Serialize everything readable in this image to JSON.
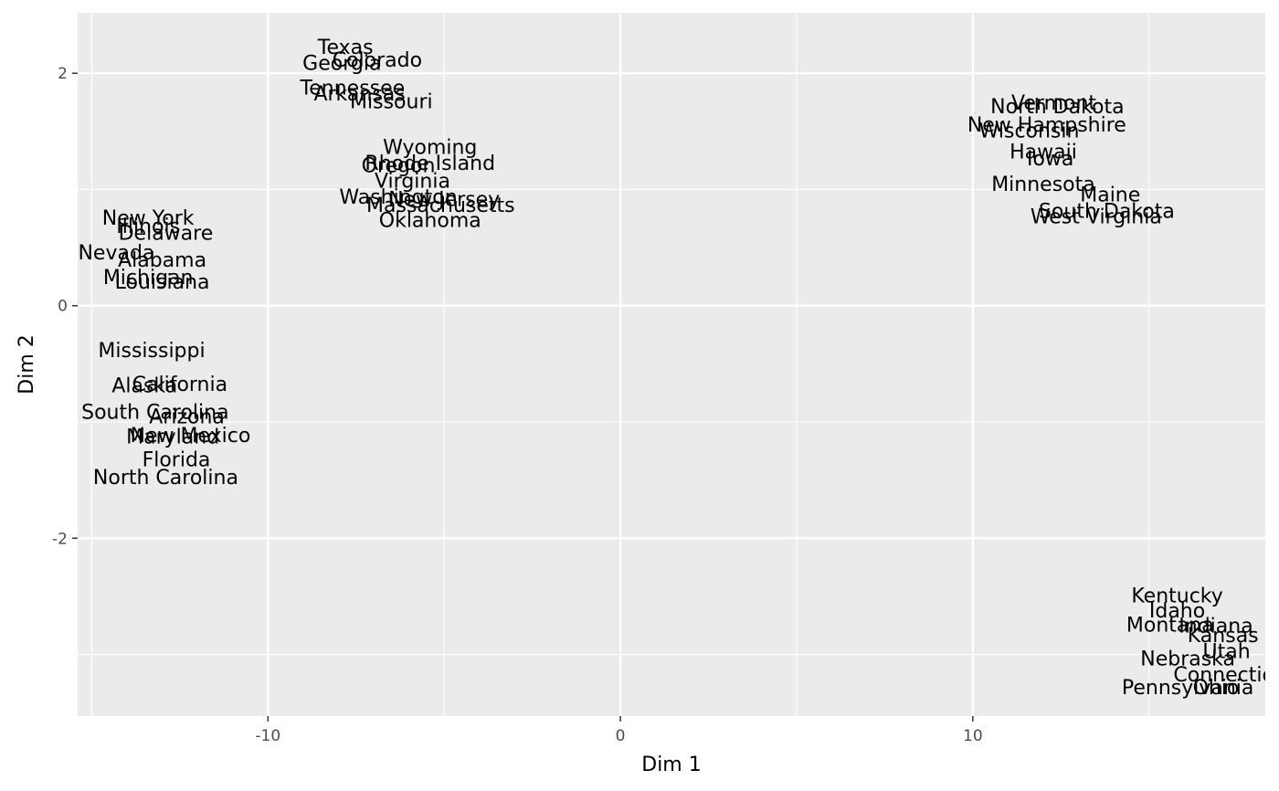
{
  "chart_data": {
    "type": "scatter",
    "title": "",
    "xlabel": "Dim 1",
    "ylabel": "Dim 2",
    "xlim": [
      -15.4,
      18.3
    ],
    "ylim": [
      -3.53,
      2.52
    ],
    "xticks": [
      -10,
      0,
      10
    ],
    "xtick_labels": [
      "-10",
      "0",
      "10"
    ],
    "yticks": [
      -2,
      0,
      2
    ],
    "ytick_labels": [
      "-2",
      "0",
      "2"
    ],
    "grid": true,
    "legend": "none",
    "colors": {
      "panel": "#ebebeb",
      "grid": "#ffffff",
      "text": "#000000",
      "tick_text": "#4d4d4d"
    },
    "points": [
      {
        "label": "Texas",
        "x": -7.8,
        "y": 2.23
      },
      {
        "label": "Colorado",
        "x": -6.9,
        "y": 2.12
      },
      {
        "label": "Georgia",
        "x": -7.9,
        "y": 2.09
      },
      {
        "label": "Tennessee",
        "x": -7.6,
        "y": 1.88
      },
      {
        "label": "Arkansas",
        "x": -7.4,
        "y": 1.83
      },
      {
        "label": "Missouri",
        "x": -6.5,
        "y": 1.76
      },
      {
        "label": "Wyoming",
        "x": -5.4,
        "y": 1.37
      },
      {
        "label": "Rhode Island",
        "x": -5.4,
        "y": 1.23
      },
      {
        "label": "Oregon",
        "x": -6.3,
        "y": 1.21
      },
      {
        "label": "Virginia",
        "x": -5.9,
        "y": 1.08
      },
      {
        "label": "Washington",
        "x": -6.3,
        "y": 0.94
      },
      {
        "label": "New Jersey",
        "x": -5.0,
        "y": 0.92
      },
      {
        "label": "Massachusetts",
        "x": -5.1,
        "y": 0.87
      },
      {
        "label": "Oklahoma",
        "x": -5.4,
        "y": 0.74
      },
      {
        "label": "New York",
        "x": -13.4,
        "y": 0.76
      },
      {
        "label": "Illinois",
        "x": -13.4,
        "y": 0.69
      },
      {
        "label": "Delaware",
        "x": -12.9,
        "y": 0.63
      },
      {
        "label": "Nevada",
        "x": -14.3,
        "y": 0.46
      },
      {
        "label": "Alabama",
        "x": -13.0,
        "y": 0.4
      },
      {
        "label": "Michigan",
        "x": -13.4,
        "y": 0.25
      },
      {
        "label": "Louisiana",
        "x": -13.0,
        "y": 0.21
      },
      {
        "label": "Mississippi",
        "x": -13.3,
        "y": -0.38
      },
      {
        "label": "California",
        "x": -12.5,
        "y": -0.67
      },
      {
        "label": "Alaska",
        "x": -13.5,
        "y": -0.68
      },
      {
        "label": "South Carolina",
        "x": -13.2,
        "y": -0.91
      },
      {
        "label": "Arizona",
        "x": -12.3,
        "y": -0.95
      },
      {
        "label": "New Mexico",
        "x": -12.2,
        "y": -1.11
      },
      {
        "label": "Maryland",
        "x": -12.7,
        "y": -1.12
      },
      {
        "label": "Florida",
        "x": -12.6,
        "y": -1.32
      },
      {
        "label": "North Carolina",
        "x": -12.9,
        "y": -1.47
      },
      {
        "label": "Vermont",
        "x": 12.3,
        "y": 1.75
      },
      {
        "label": "North Dakota",
        "x": 12.4,
        "y": 1.72
      },
      {
        "label": "New Hampshire",
        "x": 12.1,
        "y": 1.56
      },
      {
        "label": "Wisconsin",
        "x": 11.6,
        "y": 1.51
      },
      {
        "label": "Hawaii",
        "x": 12.0,
        "y": 1.33
      },
      {
        "label": "Iowa",
        "x": 12.2,
        "y": 1.27
      },
      {
        "label": "Minnesota",
        "x": 12.0,
        "y": 1.05
      },
      {
        "label": "Maine",
        "x": 13.9,
        "y": 0.96
      },
      {
        "label": "South Dakota",
        "x": 13.8,
        "y": 0.82
      },
      {
        "label": "West Virginia",
        "x": 13.5,
        "y": 0.77
      },
      {
        "label": "Kentucky",
        "x": 15.8,
        "y": -2.49
      },
      {
        "label": "Idaho",
        "x": 15.8,
        "y": -2.62
      },
      {
        "label": "Montana",
        "x": 15.6,
        "y": -2.74
      },
      {
        "label": "Indiana",
        "x": 16.9,
        "y": -2.75
      },
      {
        "label": "Kansas",
        "x": 17.1,
        "y": -2.83
      },
      {
        "label": "Utah",
        "x": 17.2,
        "y": -2.97
      },
      {
        "label": "Nebraska",
        "x": 16.1,
        "y": -3.03
      },
      {
        "label": "Connecticut",
        "x": 17.4,
        "y": -3.17
      },
      {
        "label": "Pennsylvania",
        "x": 16.1,
        "y": -3.28
      },
      {
        "label": "Ohio",
        "x": 16.9,
        "y": -3.28
      }
    ]
  }
}
